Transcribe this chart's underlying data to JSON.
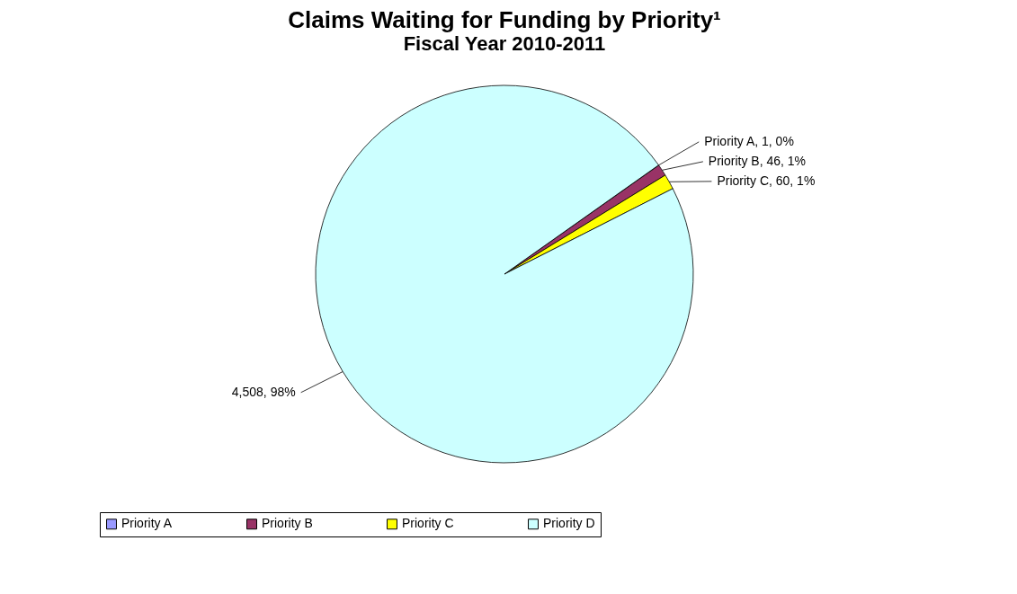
{
  "chart_data": {
    "type": "pie",
    "title": "Claims Waiting for Funding by Priority¹",
    "subtitle": "Fiscal Year 2010-2011",
    "categories": [
      "Priority A",
      "Priority B",
      "Priority C",
      "Priority D"
    ],
    "values": [
      1,
      46,
      60,
      4508
    ],
    "colors": [
      "#9999ff",
      "#993366",
      "#ffff00",
      "#ccffff"
    ],
    "value_labels": [
      "Priority A, 1, 0%",
      "Priority B, 46, 1%",
      "Priority C, 60, 1%",
      "4,508, 98%"
    ],
    "legend": "bottom"
  }
}
